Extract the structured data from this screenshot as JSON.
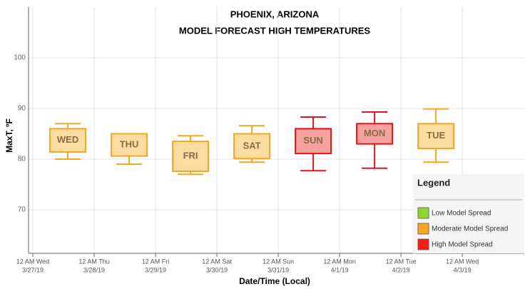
{
  "chart_data": {
    "type": "boxplot",
    "title": [
      "PHOENIX, ARIZONA",
      "MODEL FORECAST HIGH TEMPERATURES"
    ],
    "y_label": "MaxT, ºF",
    "x_label": "Date/Time (Local)",
    "ylim": [
      61.4,
      110
    ],
    "yticks": [
      70,
      80,
      90,
      100
    ],
    "xlim": [
      -0.07,
      8.01
    ],
    "xticks": [
      {
        "value": 0,
        "label": [
          "12 AM Wed",
          "3/27/19"
        ]
      },
      {
        "value": 1,
        "label": [
          "12 AM Thu",
          "3/28/19"
        ]
      },
      {
        "value": 2,
        "label": [
          "12 AM Fri",
          "3/29/19"
        ]
      },
      {
        "value": 3,
        "label": [
          "12 AM Sat",
          "3/30/19"
        ]
      },
      {
        "value": 4,
        "label": [
          "12 AM Sun",
          "3/31/19"
        ]
      },
      {
        "value": 5,
        "label": [
          "12 AM Mon",
          "4/1/19"
        ]
      },
      {
        "value": 6,
        "label": [
          "12 AM Tue",
          "4/2/19"
        ]
      },
      {
        "value": 7,
        "label": [
          "12 AM Wed",
          "4/3/19"
        ]
      }
    ],
    "grid": true,
    "boxes": [
      {
        "label": "WED",
        "x": 0.57,
        "whisker_low": 80,
        "q1": 81.4,
        "q3": 86,
        "whisker_high": 87,
        "color": "#f5a623",
        "fill": "#fddc9f"
      },
      {
        "label": "THU",
        "x": 1.57,
        "whisker_low": 79,
        "q1": 80.6,
        "q3": 85,
        "whisker_high": 85,
        "color": "#f5a623",
        "fill": "#fddc9f"
      },
      {
        "label": "FRI",
        "x": 2.57,
        "whisker_low": 77,
        "q1": 77.6,
        "q3": 83.5,
        "whisker_high": 84.6,
        "color": "#f5a623",
        "fill": "#fddc9f"
      },
      {
        "label": "SAT",
        "x": 3.57,
        "whisker_low": 79.4,
        "q1": 80.1,
        "q3": 85,
        "whisker_high": 86.6,
        "color": "#f5a623",
        "fill": "#fddc9f"
      },
      {
        "label": "SUN",
        "x": 4.57,
        "whisker_low": 77.7,
        "q1": 81.1,
        "q3": 86,
        "whisker_high": 88.3,
        "color": "#e0141a",
        "fill": "#f6a0a0"
      },
      {
        "label": "MON",
        "x": 5.57,
        "whisker_low": 78.2,
        "q1": 83,
        "q3": 87,
        "whisker_high": 89.3,
        "color": "#e0141a",
        "fill": "#f6a0a0"
      },
      {
        "label": "TUE",
        "x": 6.57,
        "whisker_low": 79.4,
        "q1": 82.1,
        "q3": 87,
        "whisker_high": 89.9,
        "color": "#f5a623",
        "fill": "#fddc9f"
      }
    ],
    "legend": {
      "title": "Legend",
      "items": [
        {
          "name": "Low Model Spread",
          "color": "#8fd630"
        },
        {
          "name": "Moderate Model Spread",
          "color": "#f5a623"
        },
        {
          "name": "High Model Spread",
          "color": "#ff1a1a"
        }
      ]
    }
  }
}
